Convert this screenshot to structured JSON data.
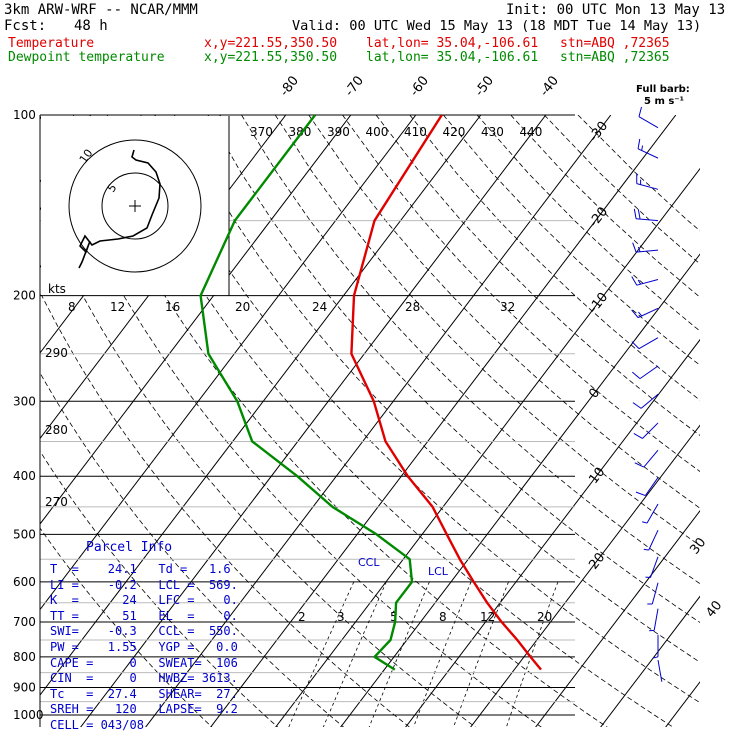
{
  "header": {
    "model": "3km ARW-WRF -- NCAR/MMM",
    "init": "Init: 00 UTC Mon 13 May 13",
    "fcst_label": "Fcst:",
    "fcst_hours": "48 h",
    "valid": "Valid: 00 UTC Wed 15 May 13 (18 MDT Tue 14 May 13)",
    "temp_label": "Temperature",
    "dew_label": "Dewpoint temperature",
    "xy": "x,y=221.55,350.50",
    "latlon": "lat,lon= 35.04,-106.61",
    "stn": "stn=ABQ ,72365"
  },
  "legend": {
    "barb_title": "Full barb:",
    "barb_units": "5 m s⁻¹"
  },
  "hodograph": {
    "units": "kts",
    "ring_labels": [
      "5",
      "10"
    ]
  },
  "chart_data": {
    "type": "line",
    "title": "",
    "ylabel": "",
    "pressure_levels": [
      100,
      200,
      300,
      400,
      500,
      600,
      700,
      800,
      900,
      1000
    ],
    "y_scale": "log-pressure",
    "ylim": [
      1000,
      100
    ],
    "isotherm_labels": [
      -80,
      -70,
      -60,
      -50,
      -40,
      -30,
      -20,
      -10,
      0,
      10,
      20,
      30,
      40
    ],
    "theta_labels_top": [
      370,
      380,
      390,
      400,
      410,
      420,
      430,
      440
    ],
    "theta_labels_left": [
      290,
      280,
      270
    ],
    "mixing_ratio_labels": [
      2,
      3,
      5,
      8,
      12,
      20
    ],
    "thetae_labels": [
      8,
      12,
      16,
      20,
      24,
      28,
      32
    ],
    "series": [
      {
        "name": "Temperature",
        "color": "#e00000",
        "points": [
          [
            100,
            -56
          ],
          [
            150,
            -54
          ],
          [
            200,
            -48.4
          ],
          [
            250,
            -42
          ],
          [
            300,
            -33
          ],
          [
            350,
            -26.5
          ],
          [
            400,
            -19
          ],
          [
            450,
            -11.6
          ],
          [
            500,
            -6.2
          ],
          [
            550,
            -1.3
          ],
          [
            600,
            3.5
          ],
          [
            650,
            8
          ],
          [
            700,
            12.5
          ],
          [
            750,
            17
          ],
          [
            800,
            21
          ],
          [
            840,
            24.1
          ]
        ]
      },
      {
        "name": "Dewpoint temperature",
        "color": "#008a00",
        "points": [
          [
            100,
            -75.5
          ],
          [
            150,
            -75.5
          ],
          [
            200,
            -72
          ],
          [
            250,
            -64
          ],
          [
            300,
            -54
          ],
          [
            350,
            -47
          ],
          [
            400,
            -36
          ],
          [
            450,
            -27
          ],
          [
            500,
            -17
          ],
          [
            550,
            -9
          ],
          [
            600,
            -6
          ],
          [
            650,
            -6
          ],
          [
            700,
            -3.9
          ],
          [
            750,
            -2.5
          ],
          [
            800,
            -3
          ],
          [
            840,
            1.6
          ]
        ]
      }
    ],
    "annotations": [
      "LCL",
      "CCL"
    ],
    "wind_barbs": {
      "title": "Full barb:",
      "units": "5 m s⁻¹",
      "levels": [
        {
          "p": 105,
          "dir": 300,
          "spd": 12
        },
        {
          "p": 118,
          "dir": 295,
          "spd": 14
        },
        {
          "p": 133,
          "dir": 285,
          "spd": 16
        },
        {
          "p": 150,
          "dir": 275,
          "spd": 18
        },
        {
          "p": 168,
          "dir": 265,
          "spd": 17
        },
        {
          "p": 188,
          "dir": 255,
          "spd": 15
        },
        {
          "p": 210,
          "dir": 245,
          "spd": 13
        },
        {
          "p": 235,
          "dir": 240,
          "spd": 12
        },
        {
          "p": 262,
          "dir": 235,
          "spd": 12
        },
        {
          "p": 292,
          "dir": 230,
          "spd": 11
        },
        {
          "p": 326,
          "dir": 225,
          "spd": 10
        },
        {
          "p": 362,
          "dir": 220,
          "spd": 9
        },
        {
          "p": 402,
          "dir": 215,
          "spd": 8
        },
        {
          "p": 445,
          "dir": 210,
          "spd": 7
        },
        {
          "p": 492,
          "dir": 205,
          "spd": 6
        },
        {
          "p": 545,
          "dir": 200,
          "spd": 5
        },
        {
          "p": 602,
          "dir": 195,
          "spd": 4
        },
        {
          "p": 665,
          "dir": 190,
          "spd": 3
        },
        {
          "p": 735,
          "dir": 180,
          "spd": 3
        },
        {
          "p": 810,
          "dir": 170,
          "spd": 2
        }
      ]
    }
  },
  "parcel_info": {
    "title": "Parcel Info",
    "rows": [
      {
        "a": "T  =    24.1",
        "b": "Td =   1.6"
      },
      {
        "a": "LI =    -0.2",
        "b": "LCL =  569."
      },
      {
        "a": "K  =      24",
        "b": "LFC =    0."
      },
      {
        "a": "TT =      51",
        "b": "EL  =    0."
      },
      {
        "a": "SWI=    -0.3",
        "b": "CCL =  550."
      },
      {
        "a": "PW =    1.55",
        "b": "YGP =   0.0"
      },
      {
        "a": "CAPE =     0",
        "b": "SWEAT=  106"
      },
      {
        "a": "CIN  =     0",
        "b": "HWBZ= 3613."
      },
      {
        "a": "Tc   =  27.4",
        "b": "SHEAR=  27."
      },
      {
        "a": "SREH =   120",
        "b": "LAPSE=  9.2"
      },
      {
        "a": "CELL = 043/08",
        "b": ""
      }
    ]
  }
}
